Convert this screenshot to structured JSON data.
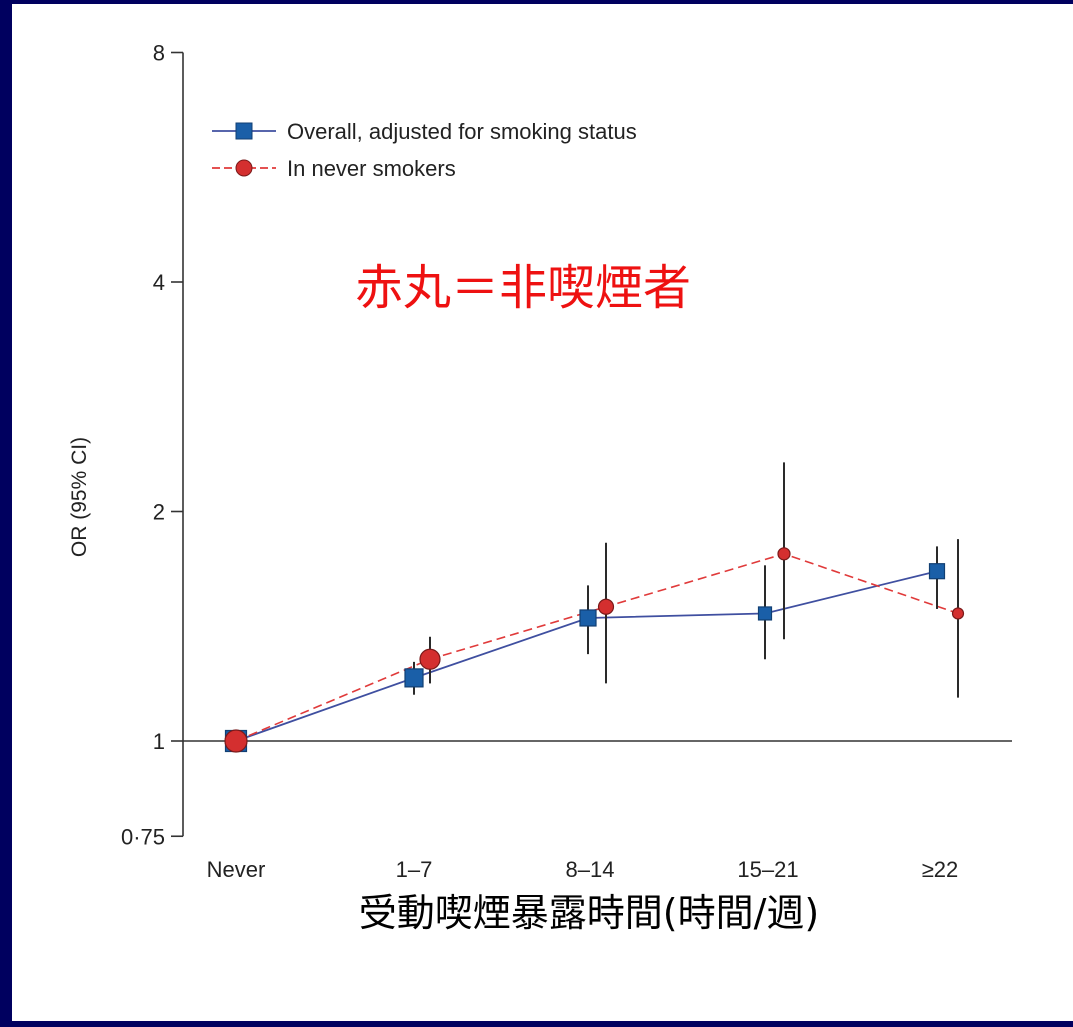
{
  "chart_data": {
    "type": "line",
    "categories": [
      "Never",
      "1–7",
      "8–14",
      "15–21",
      "≥22"
    ],
    "y_scale": "log2",
    "ylim": [
      0.75,
      8
    ],
    "yticks": [
      {
        "value": 0.75,
        "label": "0·75"
      },
      {
        "value": 1,
        "label": "1"
      },
      {
        "value": 2,
        "label": "2"
      },
      {
        "value": 4,
        "label": "4"
      },
      {
        "value": 8,
        "label": "8"
      }
    ],
    "ylabel": "OR (95% CI)",
    "xlabel": "受動喫煙暴露時間(時間/週)",
    "annotation": "赤丸＝非喫煙者",
    "reference_line": 1,
    "series": [
      {
        "name": "Overall, adjusted for smoking status",
        "color": "#1a5fa8",
        "line_color": "#3f4fa0",
        "marker": "square",
        "line_style": "solid",
        "values": [
          1.0,
          1.21,
          1.45,
          1.47,
          1.67
        ],
        "ci_low": [
          null,
          1.15,
          1.3,
          1.28,
          1.49
        ],
        "ci_high": [
          null,
          1.27,
          1.6,
          1.7,
          1.8
        ]
      },
      {
        "name": "In never smokers",
        "color": "#d42f2f",
        "line_color": "#e03a3a",
        "marker": "circle",
        "line_style": "dashed",
        "values": [
          1.0,
          1.28,
          1.5,
          1.76,
          1.47
        ],
        "ci_low": [
          null,
          1.19,
          1.19,
          1.36,
          1.14
        ],
        "ci_high": [
          null,
          1.37,
          1.82,
          2.32,
          1.84
        ]
      }
    ]
  }
}
